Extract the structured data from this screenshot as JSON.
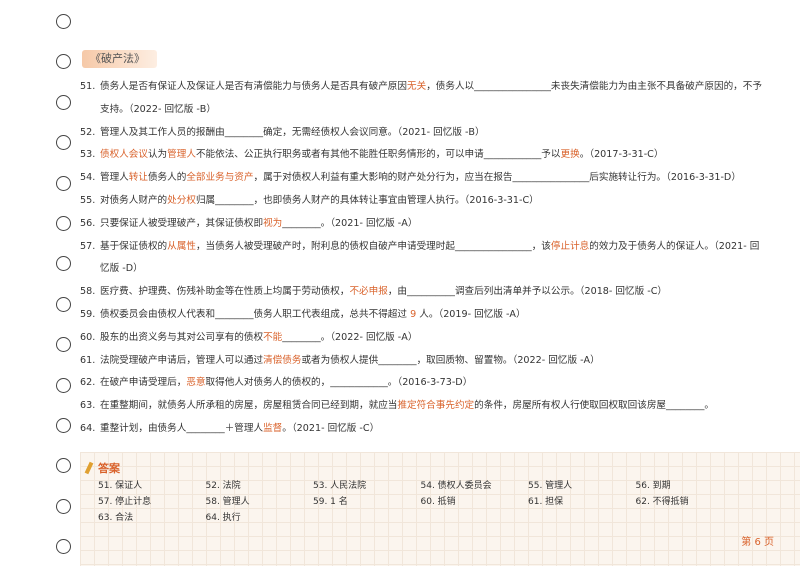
{
  "section_title": "《破产法》",
  "questions": [
    {
      "num": "51.",
      "parts": [
        "债务人是否有保证人及保证人是否有清偿能力与债务人是否具有破产原因",
        {
          "em": "无关"
        },
        "，债务人以________________未丧失清偿能力为由主张不具备破产原因的，不予支持。（2022- 回忆版 -B）"
      ]
    },
    {
      "num": "52.",
      "parts": [
        "管理人及其工作人员的报酬由________确定，无需经债权人会议同意。（2021- 回忆版 -B）"
      ]
    },
    {
      "num": "53.",
      "parts": [
        {
          "em": "债权人会议"
        },
        "认为",
        {
          "em": "管理人"
        },
        "不能依法、公正执行职务或者有其他不能胜任职务情形的，可以申请____________予以",
        {
          "em": "更换"
        },
        "。（2017-3-31-C）"
      ]
    },
    {
      "num": "54.",
      "parts": [
        "管理人",
        {
          "em": "转让"
        },
        "债务人的",
        {
          "em": "全部业务与资产"
        },
        "，属于对债权人利益有重大影响的财产处分行为，应当在报告________________后实施转让行为。（2016-3-31-D）"
      ]
    },
    {
      "num": "55.",
      "parts": [
        "对债务人财产的",
        {
          "em": "处分权"
        },
        "归属________，也即债务人财产的具体转让事宜由管理人执行。（2016-3-31-C）"
      ]
    },
    {
      "num": "56.",
      "parts": [
        "只要保证人被受理破产，其保证债权即",
        {
          "em": "视为"
        },
        "________。（2021- 回忆版 -A）"
      ]
    },
    {
      "num": "57.",
      "parts": [
        "基于保证债权的",
        {
          "em": "从属性"
        },
        "，当债务人被受理破产时，附利息的债权自破产申请受理时起________________，该",
        {
          "em": "停止计息"
        },
        "的效力及于债务人的保证人。（2021- 回忆版 -D）"
      ]
    },
    {
      "num": "58.",
      "parts": [
        "医疗费、护理费、伤残补助金等在性质上均属于劳动债权，",
        {
          "em": "不必申报"
        },
        "，由__________调查后列出清单并予以公示。（2018- 回忆版 -C）"
      ]
    },
    {
      "num": "59.",
      "parts": [
        "债权委员会由债权人代表和________债务人职工代表组成，总共不得超过 ",
        {
          "em": "9"
        },
        " 人。（2019- 回忆版 -A）"
      ]
    },
    {
      "num": "60.",
      "parts": [
        "股东的出资义务与其对公司享有的债权",
        {
          "em": "不能"
        },
        "________。（2022- 回忆版 -A）"
      ]
    },
    {
      "num": "61.",
      "parts": [
        "法院受理破产申请后，管理人可以通过",
        {
          "em": "清偿债务"
        },
        "或者为债权人提供________，取回质物、留置物。（2022- 回忆版 -A）"
      ]
    },
    {
      "num": "62.",
      "parts": [
        "在破产申请受理后，",
        {
          "em": "恶意"
        },
        "取得他人对债务人的债权的，____________。（2016-3-73-D）"
      ]
    },
    {
      "num": "63.",
      "parts": [
        "在重整期间，就债务人所承租的房屋，房屋租赁合同已经到期，就应当",
        {
          "em": "推定符合事先约定"
        },
        "的条件，房屋所有权人行使取回权取回该房屋________。"
      ]
    },
    {
      "num": "64.",
      "parts": [
        "重整计划，由债务人________＋管理人",
        {
          "em": "监督"
        },
        "。（2021- 回忆版 -C）"
      ]
    }
  ],
  "answers_title": "答案",
  "answers": [
    "51. 保证人",
    "52. 法院",
    "53. 人民法院",
    "54. 债权人委员会",
    "55. 管理人",
    "56. 到期",
    "57. 停止计息",
    "58. 管理人",
    "59. 1 名",
    "60. 抵销",
    "61. 担保",
    "62. 不得抵销",
    "63. 合法",
    "64. 执行"
  ],
  "page_number": "第 6 页"
}
